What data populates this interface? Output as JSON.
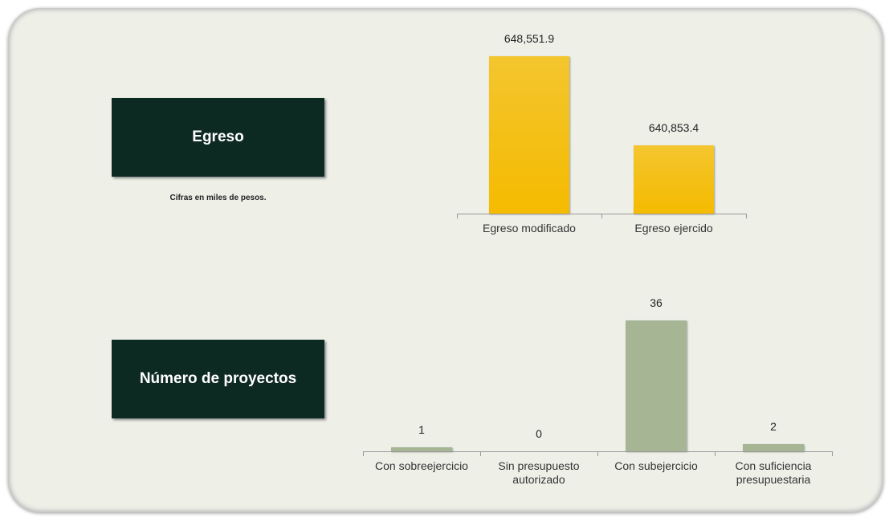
{
  "chart_data": [
    {
      "type": "bar",
      "title": "Egreso",
      "subtitle": "Cifras en miles de pesos.",
      "categories": [
        "Egreso modificado",
        "Egreso ejercido"
      ],
      "values": [
        648551.9,
        640853.4
      ],
      "value_labels": [
        "648,551.9",
        "640,853.4"
      ],
      "color": "#f5bb00",
      "ylim": [
        635000,
        650000
      ]
    },
    {
      "type": "bar",
      "title": "Número de proyectos",
      "categories": [
        "Con sobreejercicio",
        "Sin presupuesto autorizado",
        "Con subejercicio",
        "Con suficiencia presupuestaria"
      ],
      "values": [
        1,
        0,
        36,
        2
      ],
      "color": "#a6b594",
      "ylim": [
        0,
        40
      ]
    }
  ]
}
